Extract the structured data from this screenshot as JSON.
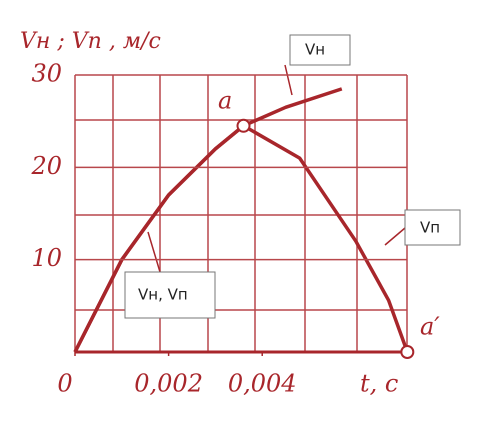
{
  "chart_data": {
    "type": "line",
    "y_label": "Vн ; Vп , м/с",
    "x_label": "t, c",
    "xlim": [
      0,
      0.0072
    ],
    "ylim": [
      0,
      30
    ],
    "xticks": [
      {
        "value": 0,
        "label": "0"
      },
      {
        "value": 0.002,
        "label": "0,002"
      },
      {
        "value": 0.004,
        "label": "0,004"
      }
    ],
    "yticks": [
      10,
      20,
      30
    ],
    "series": [
      {
        "name": "Vн",
        "color": "#a8262b",
        "x": [
          0,
          0.001,
          0.002,
          0.003,
          0.0036,
          0.0045,
          0.0057
        ],
        "values": [
          0,
          10,
          17,
          22,
          24.5,
          26.5,
          28.5
        ]
      },
      {
        "name": "Vп",
        "color": "#a8262b",
        "x": [
          0,
          0.001,
          0.002,
          0.003,
          0.0036,
          0.0048,
          0.006,
          0.0067,
          0.0071
        ],
        "values": [
          0,
          10,
          17,
          22,
          24.5,
          21,
          12,
          5.6,
          0
        ]
      }
    ],
    "annotations": [
      "Vн, Vп",
      "a",
      "a′"
    ]
  }
}
